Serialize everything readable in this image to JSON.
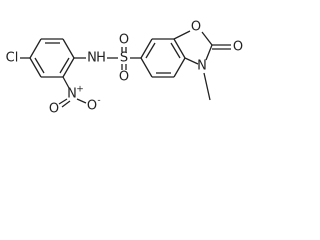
{
  "atoms": [
    "Cl",
    "N",
    "H",
    "O",
    "N",
    "+",
    "O",
    "-",
    "S",
    "O",
    "O",
    "O",
    "O",
    "N"
  ]
}
